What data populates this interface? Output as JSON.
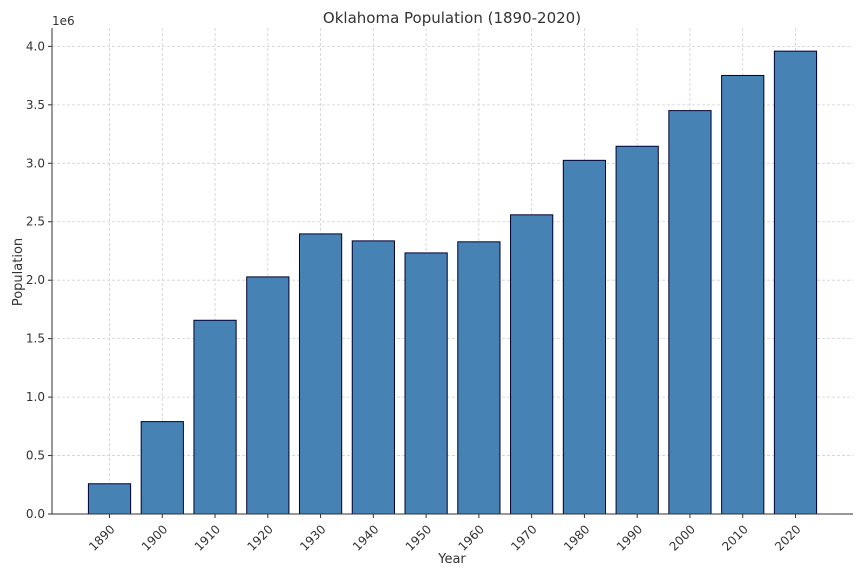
{
  "chart_data": {
    "type": "bar",
    "title": "Oklahoma Population (1890-2020)",
    "xlabel": "Year",
    "ylabel": "Population",
    "y_offset_label": "1e6",
    "categories": [
      "1890",
      "1900",
      "1910",
      "1920",
      "1930",
      "1940",
      "1950",
      "1960",
      "1970",
      "1980",
      "1990",
      "2000",
      "2010",
      "2020"
    ],
    "values": [
      258657,
      790391,
      1657155,
      2028283,
      2396040,
      2336434,
      2233351,
      2328284,
      2559229,
      3025290,
      3145585,
      3450654,
      3751351,
      3959353
    ],
    "ylim": [
      0,
      4157321
    ],
    "yticks": [
      0,
      500000,
      1000000,
      1500000,
      2000000,
      2500000,
      3000000,
      3500000,
      4000000
    ],
    "ytick_labels": [
      "0.0",
      "0.5",
      "1.0",
      "1.5",
      "2.0",
      "2.5",
      "3.0",
      "3.5",
      "4.0"
    ],
    "grid": true,
    "bar_color": "#4682b4",
    "edge_color": "#000033"
  }
}
